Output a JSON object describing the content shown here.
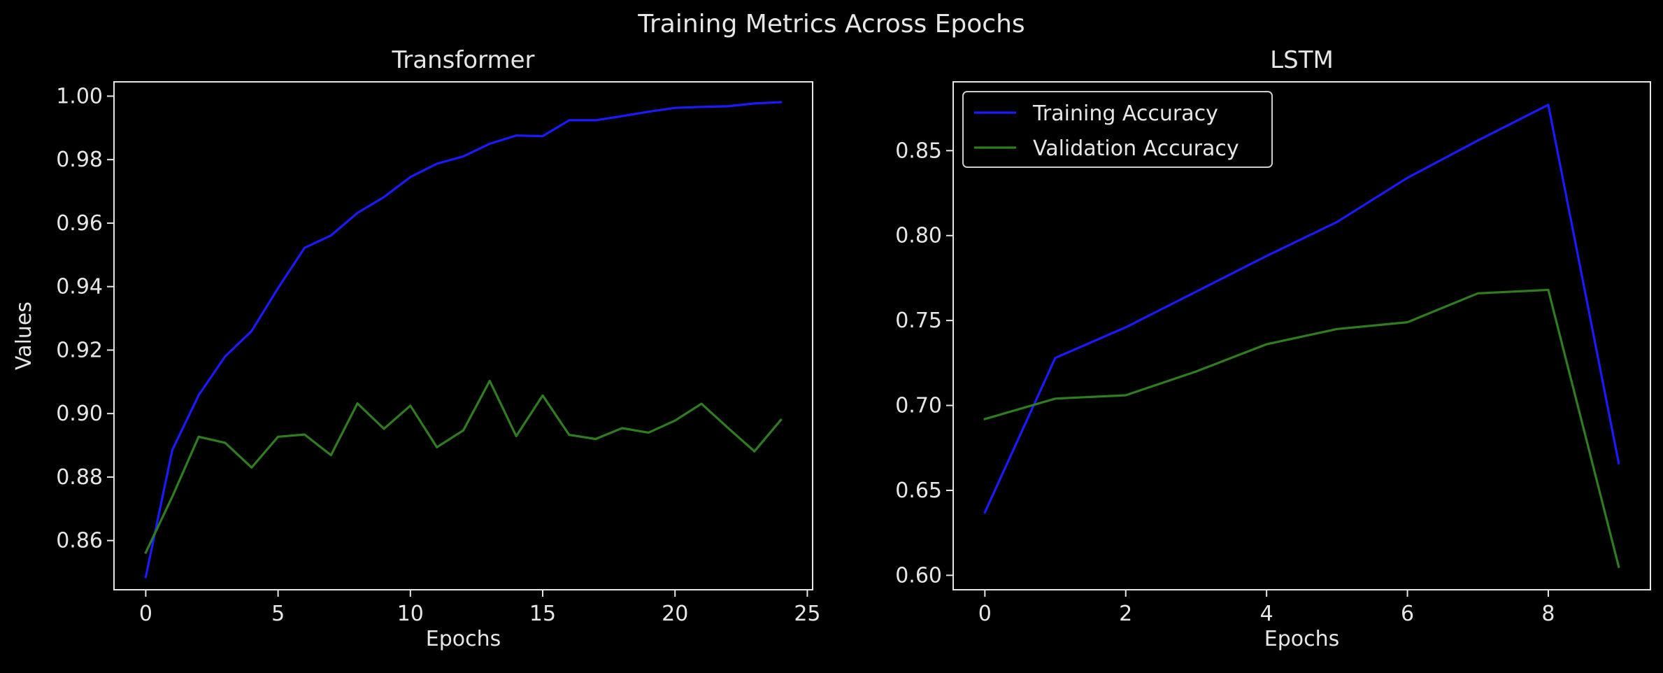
{
  "figure": {
    "title": "Training Metrics Across Epochs",
    "background": "#000000",
    "text_color": "#e6e6e6",
    "axis_color": "#e6e6e6"
  },
  "chart_data": [
    {
      "type": "line",
      "title": "Transformer",
      "xlabel": "Epochs",
      "ylabel": "Values",
      "xlim": [
        -1.2,
        25.2
      ],
      "ylim": [
        0.8445,
        1.0045
      ],
      "xticks": [
        0,
        5,
        10,
        15,
        20,
        25
      ],
      "yticks": [
        0.86,
        0.88,
        0.9,
        0.92,
        0.94,
        0.96,
        0.98,
        1.0
      ],
      "ytick_labels": [
        "0.86",
        "0.88",
        "0.90",
        "0.92",
        "0.94",
        "0.96",
        "0.98",
        "1.00"
      ],
      "grid": false,
      "legend": null,
      "x": [
        0,
        1,
        2,
        3,
        4,
        5,
        6,
        7,
        8,
        9,
        10,
        11,
        12,
        13,
        14,
        15,
        16,
        17,
        18,
        19,
        20,
        21,
        22,
        23,
        24
      ],
      "series": [
        {
          "name": "Training Accuracy",
          "color": "#1a1aff",
          "values": [
            0.8485,
            0.8885,
            0.9058,
            0.918,
            0.926,
            0.9395,
            0.9522,
            0.9561,
            0.9632,
            0.9682,
            0.9745,
            0.9787,
            0.981,
            0.985,
            0.9876,
            0.9874,
            0.9924,
            0.9924,
            0.9937,
            0.9951,
            0.9963,
            0.9966,
            0.9968,
            0.9977,
            0.9981
          ]
        },
        {
          "name": "Validation Accuracy",
          "color": "#2e7d1e",
          "values": [
            0.8562,
            0.8738,
            0.8927,
            0.8908,
            0.883,
            0.8927,
            0.8934,
            0.8869,
            0.9032,
            0.8952,
            0.9025,
            0.8894,
            0.8947,
            0.9103,
            0.8929,
            0.9057,
            0.8933,
            0.892,
            0.8954,
            0.894,
            0.8978,
            0.9031,
            0.8955,
            0.8881,
            0.898
          ]
        }
      ]
    },
    {
      "type": "line",
      "title": "LSTM",
      "xlabel": "Epochs",
      "ylabel": "",
      "xlim": [
        -0.45,
        9.45
      ],
      "ylim": [
        0.5915,
        0.8905
      ],
      "xticks": [
        0,
        2,
        4,
        6,
        8
      ],
      "yticks": [
        0.6,
        0.65,
        0.7,
        0.75,
        0.8,
        0.85
      ],
      "ytick_labels": [
        "0.60",
        "0.65",
        "0.70",
        "0.75",
        "0.80",
        "0.85"
      ],
      "grid": false,
      "legend": "top-left",
      "x": [
        0,
        1,
        2,
        3,
        4,
        5,
        6,
        7,
        8,
        9
      ],
      "series": [
        {
          "name": "Training Accuracy",
          "color": "#1a1aff",
          "values": [
            0.637,
            0.728,
            0.746,
            0.767,
            0.788,
            0.808,
            0.834,
            0.856,
            0.877,
            0.666
          ]
        },
        {
          "name": "Validation Accuracy",
          "color": "#2e7d1e",
          "values": [
            0.692,
            0.704,
            0.706,
            0.72,
            0.736,
            0.745,
            0.749,
            0.766,
            0.768,
            0.605
          ]
        }
      ]
    }
  ]
}
